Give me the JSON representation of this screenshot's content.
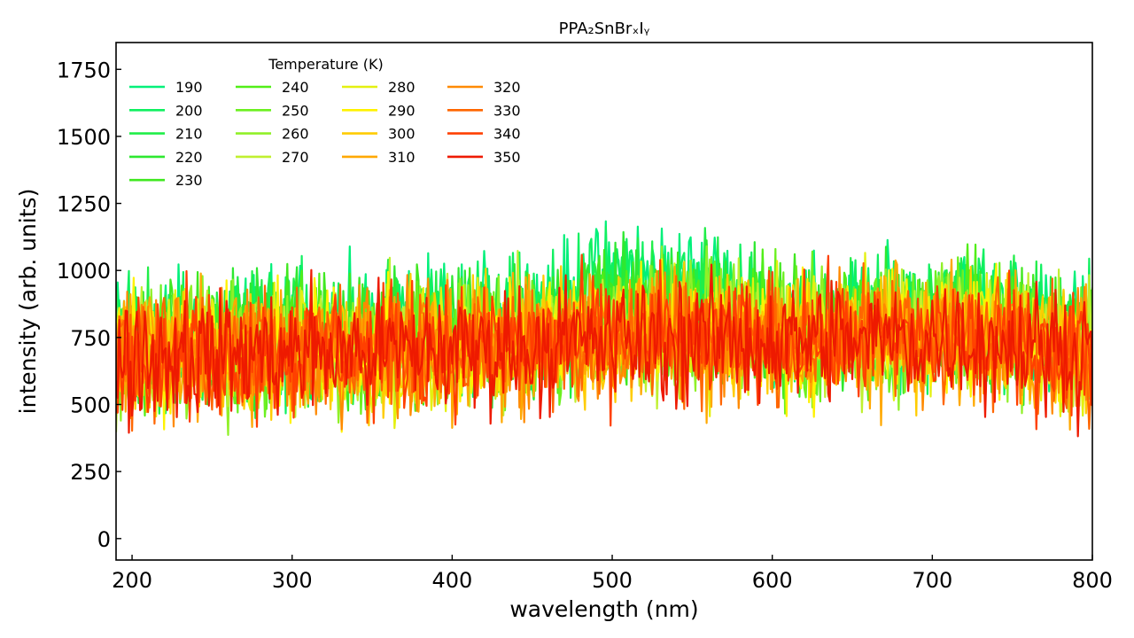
{
  "chart_data": {
    "type": "line",
    "title": "PPA₂SnBrₓIᵧ",
    "xlabel": "wavelength (nm)",
    "ylabel": "intensity (arb. units)",
    "xlim": [
      190,
      800
    ],
    "ylim": [
      -80,
      1850
    ],
    "xticks": [
      200,
      300,
      400,
      500,
      600,
      700,
      800
    ],
    "yticks": [
      0,
      250,
      500,
      750,
      1000,
      1250,
      1500,
      1750
    ],
    "grid": false,
    "legend": {
      "title": "Temperature (K)",
      "placement": "top-left",
      "columns": 4
    },
    "noise": {
      "step_nm": 1,
      "amplitude": 230,
      "floor": 0
    },
    "series": [
      {
        "name": "190",
        "color": "#00f07a",
        "profile": [
          [
            190,
            760
          ],
          [
            400,
            790
          ],
          [
            480,
            880
          ],
          [
            510,
            1000
          ],
          [
            560,
            930
          ],
          [
            620,
            800
          ],
          [
            720,
            860
          ],
          [
            800,
            760
          ]
        ]
      },
      {
        "name": "200",
        "color": "#10f060",
        "profile": [
          [
            190,
            740
          ],
          [
            400,
            770
          ],
          [
            480,
            850
          ],
          [
            510,
            960
          ],
          [
            560,
            900
          ],
          [
            620,
            790
          ],
          [
            720,
            840
          ],
          [
            800,
            750
          ]
        ]
      },
      {
        "name": "210",
        "color": "#20ee48",
        "profile": [
          [
            190,
            730
          ],
          [
            400,
            760
          ],
          [
            480,
            820
          ],
          [
            510,
            920
          ],
          [
            560,
            870
          ],
          [
            620,
            780
          ],
          [
            720,
            830
          ],
          [
            800,
            740
          ]
        ]
      },
      {
        "name": "220",
        "color": "#2ee830",
        "profile": [
          [
            190,
            720
          ],
          [
            400,
            750
          ],
          [
            480,
            800
          ],
          [
            510,
            880
          ],
          [
            560,
            850
          ],
          [
            620,
            775
          ],
          [
            720,
            820
          ],
          [
            800,
            735
          ]
        ]
      },
      {
        "name": "230",
        "color": "#40e820",
        "profile": [
          [
            190,
            710
          ],
          [
            400,
            740
          ],
          [
            480,
            790
          ],
          [
            510,
            850
          ],
          [
            560,
            830
          ],
          [
            620,
            770
          ],
          [
            720,
            810
          ],
          [
            800,
            730
          ]
        ]
      },
      {
        "name": "240",
        "color": "#52ee18",
        "profile": [
          [
            190,
            700
          ],
          [
            400,
            735
          ],
          [
            480,
            780
          ],
          [
            510,
            830
          ],
          [
            560,
            815
          ],
          [
            620,
            765
          ],
          [
            720,
            800
          ],
          [
            800,
            725
          ]
        ]
      },
      {
        "name": "250",
        "color": "#6cf020",
        "profile": [
          [
            190,
            700
          ],
          [
            400,
            730
          ],
          [
            480,
            770
          ],
          [
            510,
            810
          ],
          [
            560,
            800
          ],
          [
            620,
            760
          ],
          [
            720,
            790
          ],
          [
            800,
            720
          ]
        ]
      },
      {
        "name": "260",
        "color": "#90f028",
        "profile": [
          [
            190,
            695
          ],
          [
            400,
            725
          ],
          [
            480,
            765
          ],
          [
            510,
            795
          ],
          [
            560,
            790
          ],
          [
            620,
            758
          ],
          [
            720,
            782
          ],
          [
            800,
            718
          ]
        ]
      },
      {
        "name": "270",
        "color": "#c0f030",
        "profile": [
          [
            190,
            690
          ],
          [
            400,
            720
          ],
          [
            480,
            760
          ],
          [
            510,
            780
          ],
          [
            560,
            780
          ],
          [
            620,
            755
          ],
          [
            720,
            775
          ],
          [
            800,
            715
          ]
        ]
      },
      {
        "name": "280",
        "color": "#e4f010",
        "profile": [
          [
            190,
            690
          ],
          [
            400,
            718
          ],
          [
            480,
            755
          ],
          [
            510,
            772
          ],
          [
            560,
            772
          ],
          [
            620,
            752
          ],
          [
            720,
            770
          ],
          [
            800,
            712
          ]
        ]
      },
      {
        "name": "290",
        "color": "#fff200",
        "profile": [
          [
            190,
            688
          ],
          [
            400,
            716
          ],
          [
            480,
            750
          ],
          [
            510,
            765
          ],
          [
            560,
            765
          ],
          [
            620,
            750
          ],
          [
            720,
            765
          ],
          [
            800,
            710
          ]
        ]
      },
      {
        "name": "300",
        "color": "#ffcc00",
        "profile": [
          [
            190,
            686
          ],
          [
            400,
            714
          ],
          [
            480,
            746
          ],
          [
            510,
            760
          ],
          [
            560,
            760
          ],
          [
            620,
            748
          ],
          [
            720,
            760
          ],
          [
            800,
            708
          ]
        ]
      },
      {
        "name": "310",
        "color": "#ffa800",
        "profile": [
          [
            190,
            685
          ],
          [
            400,
            712
          ],
          [
            480,
            742
          ],
          [
            510,
            755
          ],
          [
            560,
            755
          ],
          [
            620,
            746
          ],
          [
            720,
            756
          ],
          [
            800,
            706
          ]
        ]
      },
      {
        "name": "320",
        "color": "#ff8a00",
        "profile": [
          [
            190,
            684
          ],
          [
            400,
            710
          ],
          [
            480,
            738
          ],
          [
            510,
            750
          ],
          [
            560,
            750
          ],
          [
            620,
            744
          ],
          [
            720,
            752
          ],
          [
            800,
            704
          ]
        ]
      },
      {
        "name": "330",
        "color": "#ff6600",
        "profile": [
          [
            190,
            683
          ],
          [
            400,
            708
          ],
          [
            480,
            735
          ],
          [
            510,
            746
          ],
          [
            560,
            746
          ],
          [
            620,
            742
          ],
          [
            720,
            748
          ],
          [
            800,
            702
          ]
        ]
      },
      {
        "name": "340",
        "color": "#ff4000",
        "profile": [
          [
            190,
            682
          ],
          [
            400,
            706
          ],
          [
            480,
            732
          ],
          [
            510,
            742
          ],
          [
            560,
            742
          ],
          [
            620,
            740
          ],
          [
            720,
            744
          ],
          [
            800,
            700
          ]
        ]
      },
      {
        "name": "350",
        "color": "#ee1a00",
        "profile": [
          [
            190,
            680
          ],
          [
            400,
            704
          ],
          [
            480,
            728
          ],
          [
            510,
            738
          ],
          [
            560,
            738
          ],
          [
            620,
            738
          ],
          [
            720,
            740
          ],
          [
            800,
            698
          ]
        ]
      }
    ]
  }
}
